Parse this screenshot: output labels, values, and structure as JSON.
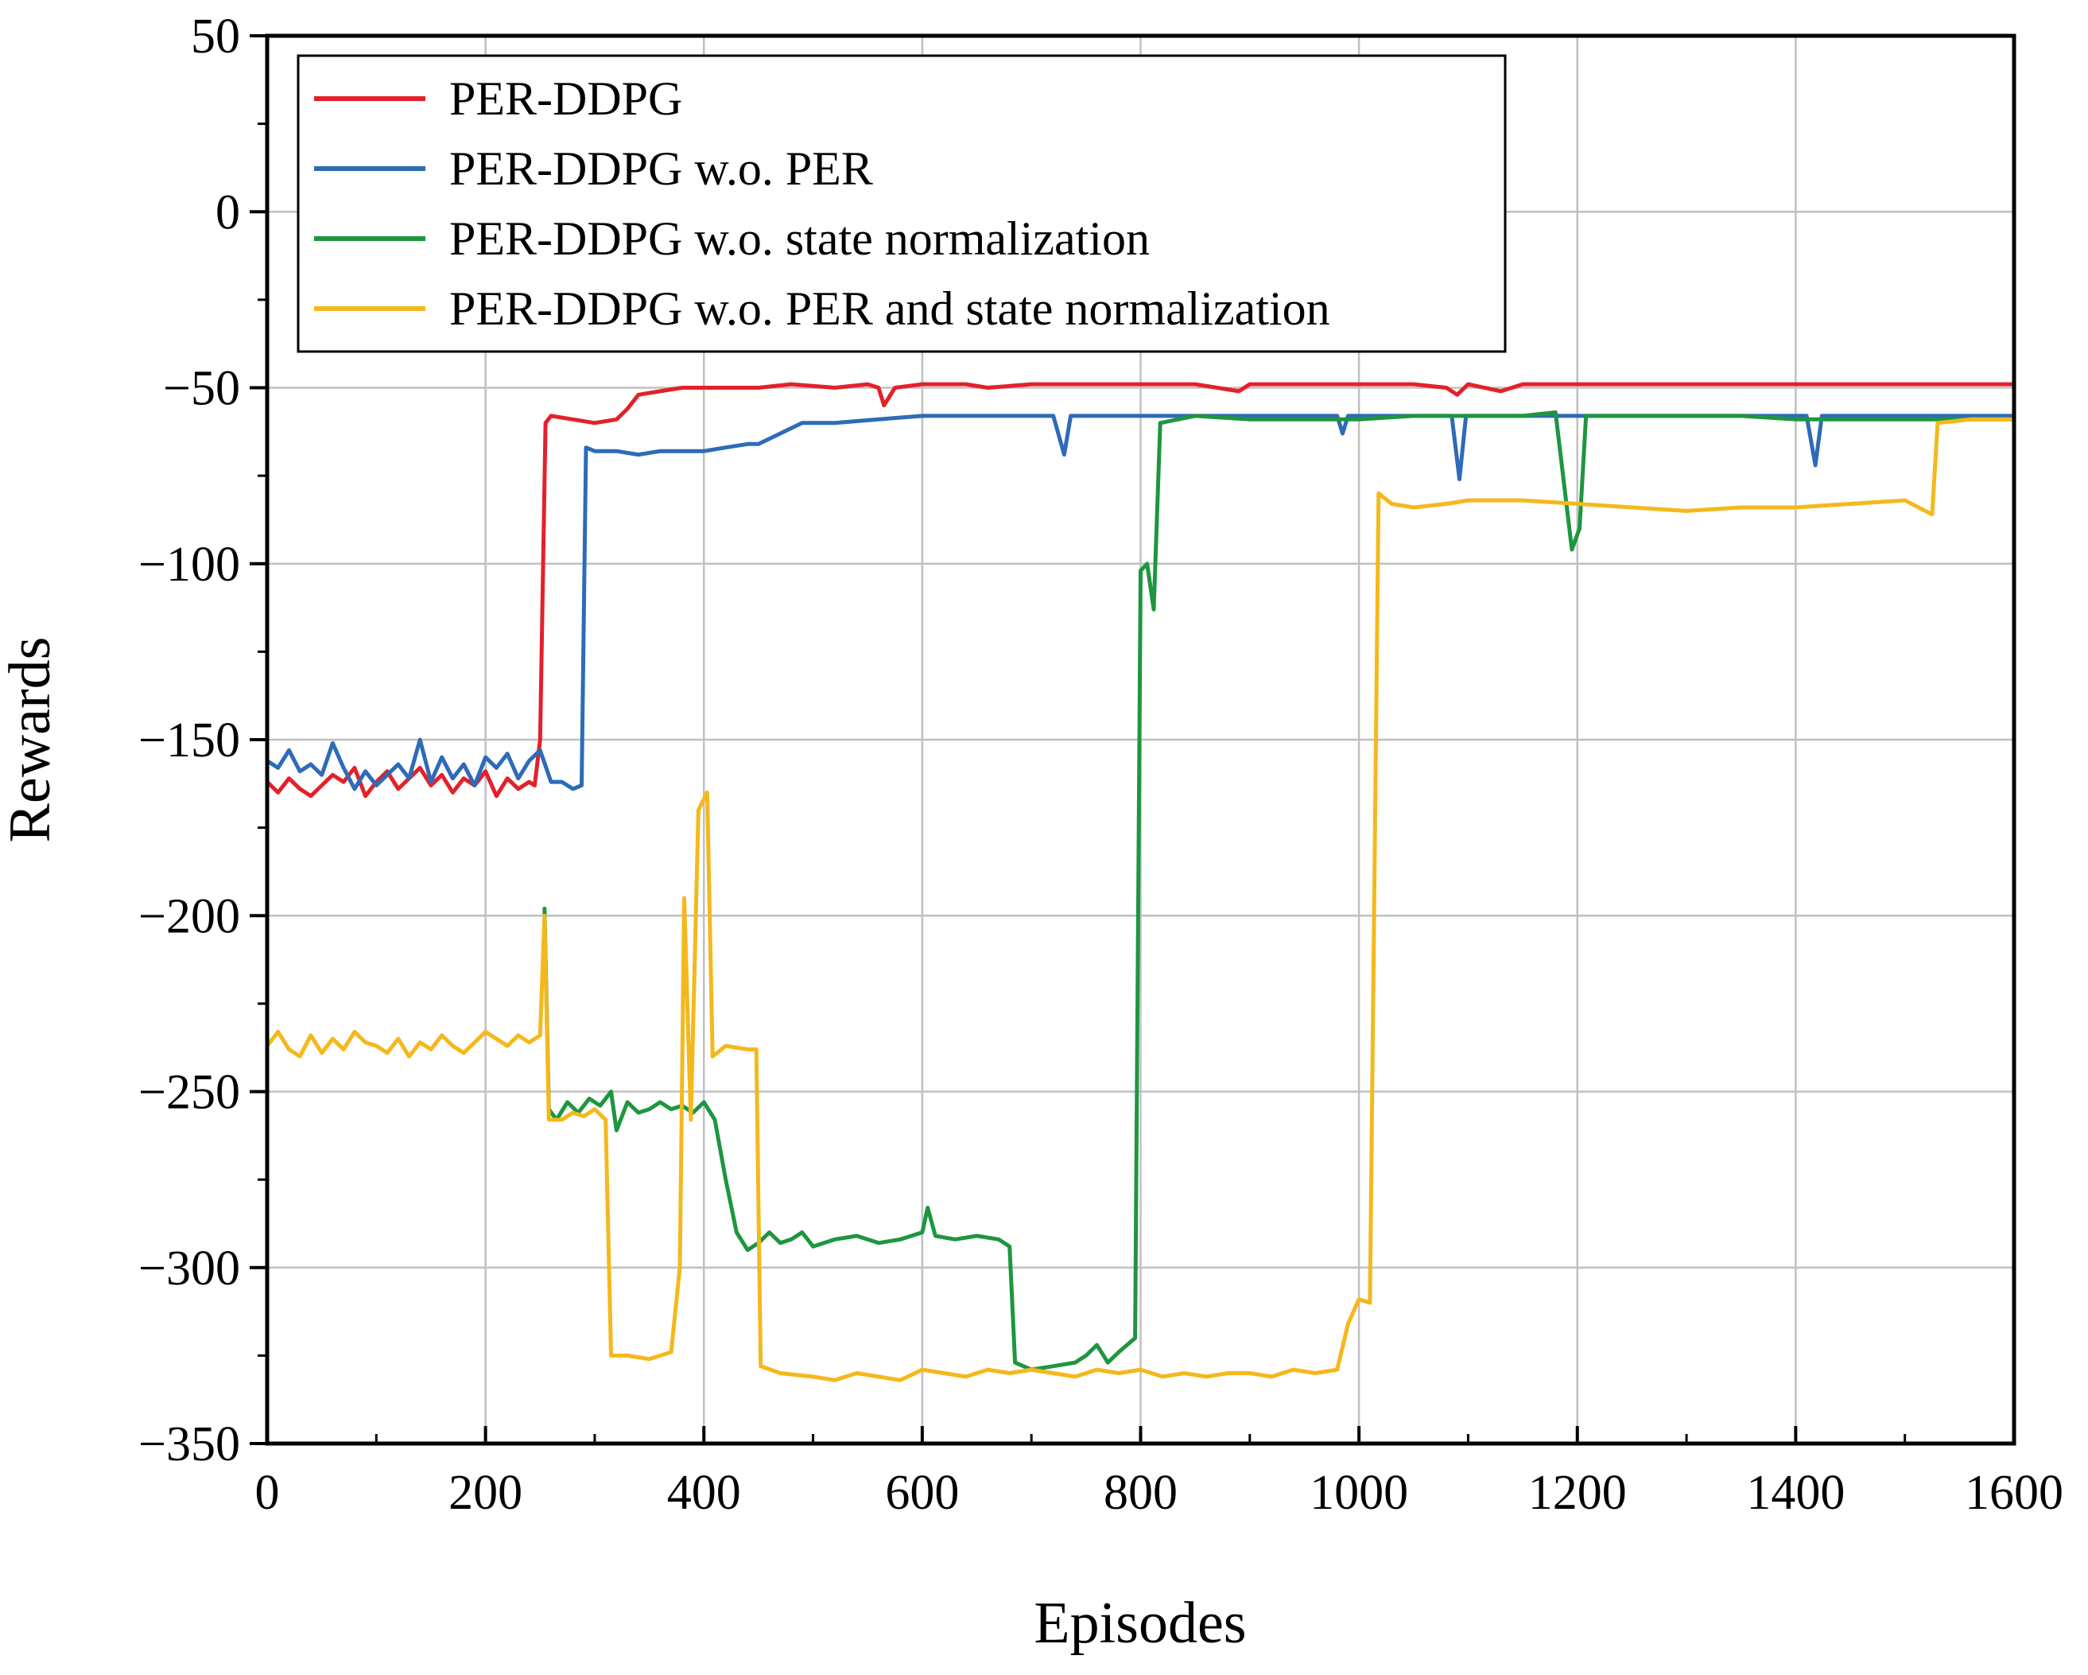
{
  "chart_data": {
    "type": "line",
    "title": "",
    "xlabel": "Episodes",
    "ylabel": "Rewards",
    "xlim": [
      0,
      1600
    ],
    "ylim": [
      -350,
      50
    ],
    "xticks": [
      0,
      200,
      400,
      600,
      800,
      1000,
      1200,
      1400,
      1600
    ],
    "yticks": [
      50,
      0,
      -50,
      -100,
      -150,
      -200,
      -250,
      -300,
      -350
    ],
    "grid": true,
    "legend_position": "top-left",
    "series": [
      {
        "name": "PER-DDPG",
        "color": "#e3212b",
        "points": [
          [
            0,
            -162
          ],
          [
            10,
            -165
          ],
          [
            20,
            -161
          ],
          [
            30,
            -164
          ],
          [
            40,
            -166
          ],
          [
            50,
            -163
          ],
          [
            60,
            -160
          ],
          [
            70,
            -162
          ],
          [
            80,
            -158
          ],
          [
            90,
            -166
          ],
          [
            100,
            -162
          ],
          [
            110,
            -159
          ],
          [
            120,
            -164
          ],
          [
            130,
            -161
          ],
          [
            140,
            -158
          ],
          [
            150,
            -163
          ],
          [
            160,
            -160
          ],
          [
            170,
            -165
          ],
          [
            180,
            -161
          ],
          [
            190,
            -163
          ],
          [
            200,
            -159
          ],
          [
            210,
            -166
          ],
          [
            220,
            -161
          ],
          [
            230,
            -164
          ],
          [
            240,
            -162
          ],
          [
            245,
            -163
          ],
          [
            250,
            -150
          ],
          [
            255,
            -60
          ],
          [
            260,
            -58
          ],
          [
            280,
            -59
          ],
          [
            300,
            -60
          ],
          [
            320,
            -59
          ],
          [
            330,
            -56
          ],
          [
            340,
            -52
          ],
          [
            360,
            -51
          ],
          [
            380,
            -50
          ],
          [
            400,
            -50
          ],
          [
            420,
            -50
          ],
          [
            450,
            -50
          ],
          [
            480,
            -49
          ],
          [
            520,
            -50
          ],
          [
            550,
            -49
          ],
          [
            560,
            -50
          ],
          [
            565,
            -55
          ],
          [
            575,
            -50
          ],
          [
            600,
            -49
          ],
          [
            640,
            -49
          ],
          [
            660,
            -50
          ],
          [
            700,
            -49
          ],
          [
            750,
            -49
          ],
          [
            800,
            -49
          ],
          [
            850,
            -49
          ],
          [
            890,
            -51
          ],
          [
            900,
            -49
          ],
          [
            950,
            -49
          ],
          [
            1000,
            -49
          ],
          [
            1050,
            -49
          ],
          [
            1080,
            -50
          ],
          [
            1090,
            -52
          ],
          [
            1100,
            -49
          ],
          [
            1130,
            -51
          ],
          [
            1150,
            -49
          ],
          [
            1200,
            -49
          ],
          [
            1250,
            -49
          ],
          [
            1300,
            -49
          ],
          [
            1350,
            -49
          ],
          [
            1400,
            -49
          ],
          [
            1450,
            -49
          ],
          [
            1500,
            -49
          ],
          [
            1550,
            -49
          ],
          [
            1600,
            -49
          ]
        ]
      },
      {
        "name": "PER-DDPG w.o. PER",
        "color": "#2e6bb8",
        "points": [
          [
            0,
            -156
          ],
          [
            10,
            -158
          ],
          [
            20,
            -153
          ],
          [
            30,
            -159
          ],
          [
            40,
            -157
          ],
          [
            50,
            -160
          ],
          [
            60,
            -151
          ],
          [
            70,
            -158
          ],
          [
            80,
            -164
          ],
          [
            90,
            -159
          ],
          [
            100,
            -163
          ],
          [
            110,
            -160
          ],
          [
            120,
            -157
          ],
          [
            130,
            -161
          ],
          [
            140,
            -150
          ],
          [
            150,
            -162
          ],
          [
            160,
            -155
          ],
          [
            170,
            -161
          ],
          [
            180,
            -157
          ],
          [
            190,
            -163
          ],
          [
            200,
            -155
          ],
          [
            210,
            -158
          ],
          [
            220,
            -154
          ],
          [
            230,
            -161
          ],
          [
            240,
            -156
          ],
          [
            250,
            -153
          ],
          [
            260,
            -162
          ],
          [
            270,
            -162
          ],
          [
            280,
            -164
          ],
          [
            288,
            -163
          ],
          [
            292,
            -67
          ],
          [
            300,
            -68
          ],
          [
            320,
            -68
          ],
          [
            340,
            -69
          ],
          [
            360,
            -68
          ],
          [
            380,
            -68
          ],
          [
            400,
            -68
          ],
          [
            420,
            -67
          ],
          [
            440,
            -66
          ],
          [
            450,
            -66
          ],
          [
            470,
            -63
          ],
          [
            490,
            -60
          ],
          [
            520,
            -60
          ],
          [
            560,
            -59
          ],
          [
            600,
            -58
          ],
          [
            650,
            -58
          ],
          [
            700,
            -58
          ],
          [
            720,
            -58
          ],
          [
            730,
            -69
          ],
          [
            736,
            -58
          ],
          [
            760,
            -58
          ],
          [
            800,
            -58
          ],
          [
            850,
            -58
          ],
          [
            900,
            -58
          ],
          [
            950,
            -58
          ],
          [
            980,
            -58
          ],
          [
            985,
            -63
          ],
          [
            990,
            -58
          ],
          [
            1050,
            -58
          ],
          [
            1085,
            -58
          ],
          [
            1092,
            -76
          ],
          [
            1098,
            -58
          ],
          [
            1150,
            -58
          ],
          [
            1200,
            -58
          ],
          [
            1250,
            -58
          ],
          [
            1300,
            -58
          ],
          [
            1350,
            -58
          ],
          [
            1410,
            -58
          ],
          [
            1418,
            -72
          ],
          [
            1424,
            -58
          ],
          [
            1450,
            -58
          ],
          [
            1500,
            -58
          ],
          [
            1550,
            -58
          ],
          [
            1600,
            -58
          ]
        ]
      },
      {
        "name": "PER-DDPG w.o. state normalization",
        "color": "#1e9640",
        "points": [
          [
            254,
            -198
          ],
          [
            258,
            -255
          ],
          [
            265,
            -258
          ],
          [
            275,
            -253
          ],
          [
            285,
            -256
          ],
          [
            295,
            -252
          ],
          [
            305,
            -254
          ],
          [
            315,
            -250
          ],
          [
            320,
            -261
          ],
          [
            330,
            -253
          ],
          [
            340,
            -256
          ],
          [
            350,
            -255
          ],
          [
            360,
            -253
          ],
          [
            370,
            -255
          ],
          [
            380,
            -254
          ],
          [
            390,
            -256
          ],
          [
            400,
            -253
          ],
          [
            410,
            -258
          ],
          [
            420,
            -275
          ],
          [
            430,
            -290
          ],
          [
            440,
            -295
          ],
          [
            450,
            -293
          ],
          [
            460,
            -290
          ],
          [
            470,
            -293
          ],
          [
            480,
            -292
          ],
          [
            490,
            -290
          ],
          [
            500,
            -294
          ],
          [
            520,
            -292
          ],
          [
            540,
            -291
          ],
          [
            560,
            -293
          ],
          [
            580,
            -292
          ],
          [
            600,
            -290
          ],
          [
            605,
            -283
          ],
          [
            612,
            -291
          ],
          [
            630,
            -292
          ],
          [
            650,
            -291
          ],
          [
            670,
            -292
          ],
          [
            680,
            -294
          ],
          [
            685,
            -327
          ],
          [
            700,
            -329
          ],
          [
            720,
            -328
          ],
          [
            740,
            -327
          ],
          [
            750,
            -325
          ],
          [
            760,
            -322
          ],
          [
            770,
            -327
          ],
          [
            780,
            -324
          ],
          [
            795,
            -320
          ],
          [
            800,
            -102
          ],
          [
            806,
            -100
          ],
          [
            812,
            -113
          ],
          [
            818,
            -60
          ],
          [
            850,
            -58
          ],
          [
            900,
            -59
          ],
          [
            950,
            -59
          ],
          [
            1000,
            -59
          ],
          [
            1050,
            -58
          ],
          [
            1100,
            -58
          ],
          [
            1150,
            -58
          ],
          [
            1180,
            -57
          ],
          [
            1195,
            -96
          ],
          [
            1202,
            -90
          ],
          [
            1208,
            -58
          ],
          [
            1250,
            -58
          ],
          [
            1300,
            -58
          ],
          [
            1350,
            -58
          ],
          [
            1400,
            -59
          ],
          [
            1450,
            -59
          ],
          [
            1500,
            -59
          ],
          [
            1550,
            -59
          ],
          [
            1600,
            -59
          ]
        ]
      },
      {
        "name": "PER-DDPG w.o. PER and state normalization",
        "color": "#f5b81c",
        "points": [
          [
            0,
            -237
          ],
          [
            10,
            -233
          ],
          [
            20,
            -238
          ],
          [
            30,
            -240
          ],
          [
            40,
            -234
          ],
          [
            50,
            -239
          ],
          [
            60,
            -235
          ],
          [
            70,
            -238
          ],
          [
            80,
            -233
          ],
          [
            90,
            -236
          ],
          [
            100,
            -237
          ],
          [
            110,
            -239
          ],
          [
            120,
            -235
          ],
          [
            130,
            -240
          ],
          [
            140,
            -236
          ],
          [
            150,
            -238
          ],
          [
            160,
            -234
          ],
          [
            170,
            -237
          ],
          [
            180,
            -239
          ],
          [
            190,
            -236
          ],
          [
            200,
            -233
          ],
          [
            210,
            -235
          ],
          [
            220,
            -237
          ],
          [
            230,
            -234
          ],
          [
            240,
            -236
          ],
          [
            250,
            -234
          ],
          [
            254,
            -200
          ],
          [
            258,
            -258
          ],
          [
            270,
            -258
          ],
          [
            280,
            -256
          ],
          [
            290,
            -257
          ],
          [
            300,
            -255
          ],
          [
            310,
            -258
          ],
          [
            315,
            -325
          ],
          [
            330,
            -325
          ],
          [
            350,
            -326
          ],
          [
            370,
            -324
          ],
          [
            378,
            -300
          ],
          [
            382,
            -195
          ],
          [
            388,
            -258
          ],
          [
            395,
            -170
          ],
          [
            403,
            -165
          ],
          [
            408,
            -240
          ],
          [
            420,
            -237
          ],
          [
            440,
            -238
          ],
          [
            448,
            -238
          ],
          [
            452,
            -328
          ],
          [
            470,
            -330
          ],
          [
            500,
            -331
          ],
          [
            520,
            -332
          ],
          [
            540,
            -330
          ],
          [
            560,
            -331
          ],
          [
            580,
            -332
          ],
          [
            600,
            -329
          ],
          [
            620,
            -330
          ],
          [
            640,
            -331
          ],
          [
            660,
            -329
          ],
          [
            680,
            -330
          ],
          [
            700,
            -329
          ],
          [
            720,
            -330
          ],
          [
            740,
            -331
          ],
          [
            760,
            -329
          ],
          [
            780,
            -330
          ],
          [
            800,
            -329
          ],
          [
            820,
            -331
          ],
          [
            840,
            -330
          ],
          [
            860,
            -331
          ],
          [
            880,
            -330
          ],
          [
            900,
            -330
          ],
          [
            920,
            -331
          ],
          [
            940,
            -329
          ],
          [
            960,
            -330
          ],
          [
            980,
            -329
          ],
          [
            990,
            -316
          ],
          [
            1000,
            -309
          ],
          [
            1010,
            -310
          ],
          [
            1018,
            -80
          ],
          [
            1030,
            -83
          ],
          [
            1050,
            -84
          ],
          [
            1080,
            -83
          ],
          [
            1100,
            -82
          ],
          [
            1150,
            -82
          ],
          [
            1200,
            -83
          ],
          [
            1250,
            -84
          ],
          [
            1300,
            -85
          ],
          [
            1350,
            -84
          ],
          [
            1400,
            -84
          ],
          [
            1450,
            -83
          ],
          [
            1500,
            -82
          ],
          [
            1525,
            -86
          ],
          [
            1530,
            -60
          ],
          [
            1560,
            -59
          ],
          [
            1600,
            -59
          ]
        ]
      }
    ]
  }
}
